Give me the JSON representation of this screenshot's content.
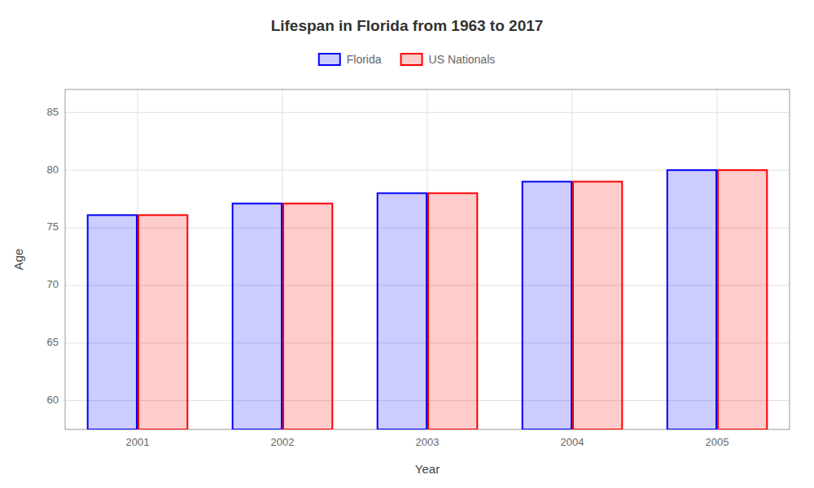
{
  "chart_data": {
    "type": "bar",
    "title": "Lifespan in Florida from 1963 to 2017",
    "x_label": "Year",
    "y_label": "Age",
    "categories": [
      "2001",
      "2002",
      "2003",
      "2004",
      "2005"
    ],
    "series": [
      {
        "name": "Florida",
        "color": "#0000ff",
        "values": [
          76.1,
          77.1,
          78.0,
          79.0,
          80.0
        ]
      },
      {
        "name": "US Nationals",
        "color": "#ff0000",
        "values": [
          76.1,
          77.1,
          78.0,
          79.0,
          80.0
        ]
      }
    ],
    "ylim": [
      57.5,
      87
    ],
    "yticks": [
      60,
      65,
      70,
      75,
      80,
      85
    ],
    "grid": true,
    "legend": "top"
  }
}
